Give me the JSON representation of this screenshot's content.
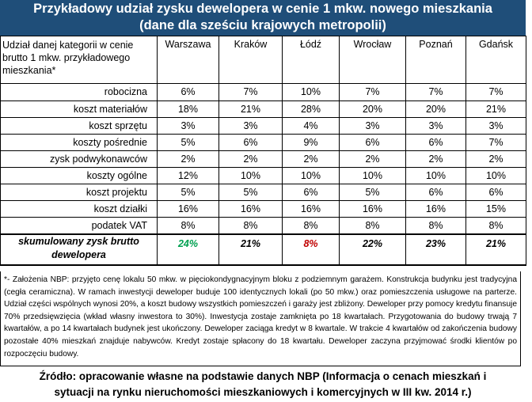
{
  "title": {
    "line1": "Przykładowy udział zysku dewelopera w cenie 1 mkw. nowego mieszkania",
    "line2": "(dane dla sześciu krajowych metropolii)"
  },
  "colors": {
    "title_bg": "#1f4e79",
    "positive": "#00a050",
    "negative": "#c00000"
  },
  "table": {
    "header_category": "Udział danej kategorii w cenie brutto 1 mkw. przykładowego mieszkania*",
    "cities": [
      "Warszawa",
      "Kraków",
      "Łódź",
      "Wrocław",
      "Poznań",
      "Gdańsk"
    ],
    "rows": [
      {
        "label": "robocizna",
        "values": [
          "6%",
          "7%",
          "10%",
          "7%",
          "7%",
          "7%"
        ]
      },
      {
        "label": "koszt materiałów",
        "values": [
          "18%",
          "21%",
          "28%",
          "20%",
          "20%",
          "21%"
        ]
      },
      {
        "label": "koszt sprzętu",
        "values": [
          "3%",
          "3%",
          "4%",
          "3%",
          "3%",
          "3%"
        ]
      },
      {
        "label": "koszty pośrednie",
        "values": [
          "5%",
          "6%",
          "9%",
          "6%",
          "6%",
          "7%"
        ]
      },
      {
        "label": "zysk podwykonawców",
        "values": [
          "2%",
          "2%",
          "2%",
          "2%",
          "2%",
          "2%"
        ]
      },
      {
        "label": "koszty ogólne",
        "values": [
          "12%",
          "10%",
          "10%",
          "10%",
          "10%",
          "10%"
        ]
      },
      {
        "label": "koszt projektu",
        "values": [
          "5%",
          "5%",
          "6%",
          "5%",
          "6%",
          "6%"
        ]
      },
      {
        "label": "koszt działki",
        "values": [
          "16%",
          "16%",
          "16%",
          "16%",
          "16%",
          "15%"
        ]
      },
      {
        "label": "podatek VAT",
        "values": [
          "8%",
          "8%",
          "8%",
          "8%",
          "8%",
          "8%"
        ]
      }
    ],
    "summary": {
      "label": "skumulowany zysk brutto dewelopera",
      "values": [
        "24%",
        "21%",
        "8%",
        "22%",
        "23%",
        "21%"
      ]
    }
  },
  "note": "*- Założenia NBP: przyjęto cenę lokalu 50 mkw. w pięciokondygnacyjnym bloku z podziemnym garażem. Konstrukcja budynku jest tradycyjna (cegła ceramiczna). W ramach inwestycji deweloper buduje 100 identycznych lokali (po 50 mkw.) oraz pomieszczenia usługowe na parterze. Udział części wspólnych wynosi 20%, a koszt budowy wszystkich pomieszczeń i garaży jest zbliżony. Deweloper przy pomocy kredytu finansuje 70% przedsięwzięcia (wkład własny inwestora to 30%). Inwestycja zostaje zamknięta po 18 kwartałach. Przygotowania do budowy trwają 7 kwartałów, a po 14 kwartałach budynek jest ukończony. Deweloper zaciąga kredyt w 8 kwartale. W trakcie 4 kwartałów od zakończenia budowy pozostałe 40% mieszkań znajduje nabywców. Kredyt zostaje spłacony do 18 kwartału. Deweloper zaczyna przyjmować środki klientów po rozpoczęciu budowy.",
  "source": {
    "line1": "Źródło: opracowanie własne na podstawie danych NBP (Informacja o cenach mieszkań i",
    "line2": "sytuacji na rynku nieruchomości mieszkaniowych i komercyjnych w III kw. 2014 r.)"
  }
}
